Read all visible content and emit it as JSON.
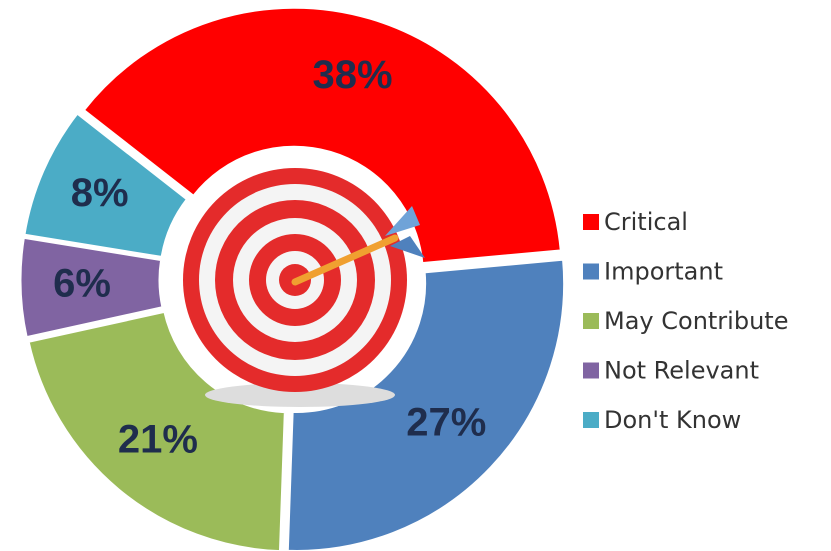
{
  "chart_data": {
    "type": "pie",
    "categories": [
      "Critical",
      "Important",
      "May Contribute",
      "Not Relevant",
      "Don't Know"
    ],
    "values": [
      38,
      27,
      21,
      6,
      8
    ],
    "value_labels": [
      "38%",
      "27%",
      "21%",
      "6%",
      "8%"
    ],
    "colors": [
      "#ff0000",
      "#4f81bd",
      "#9bbb59",
      "#8064a2",
      "#4bacc6"
    ],
    "legend": "right"
  }
}
